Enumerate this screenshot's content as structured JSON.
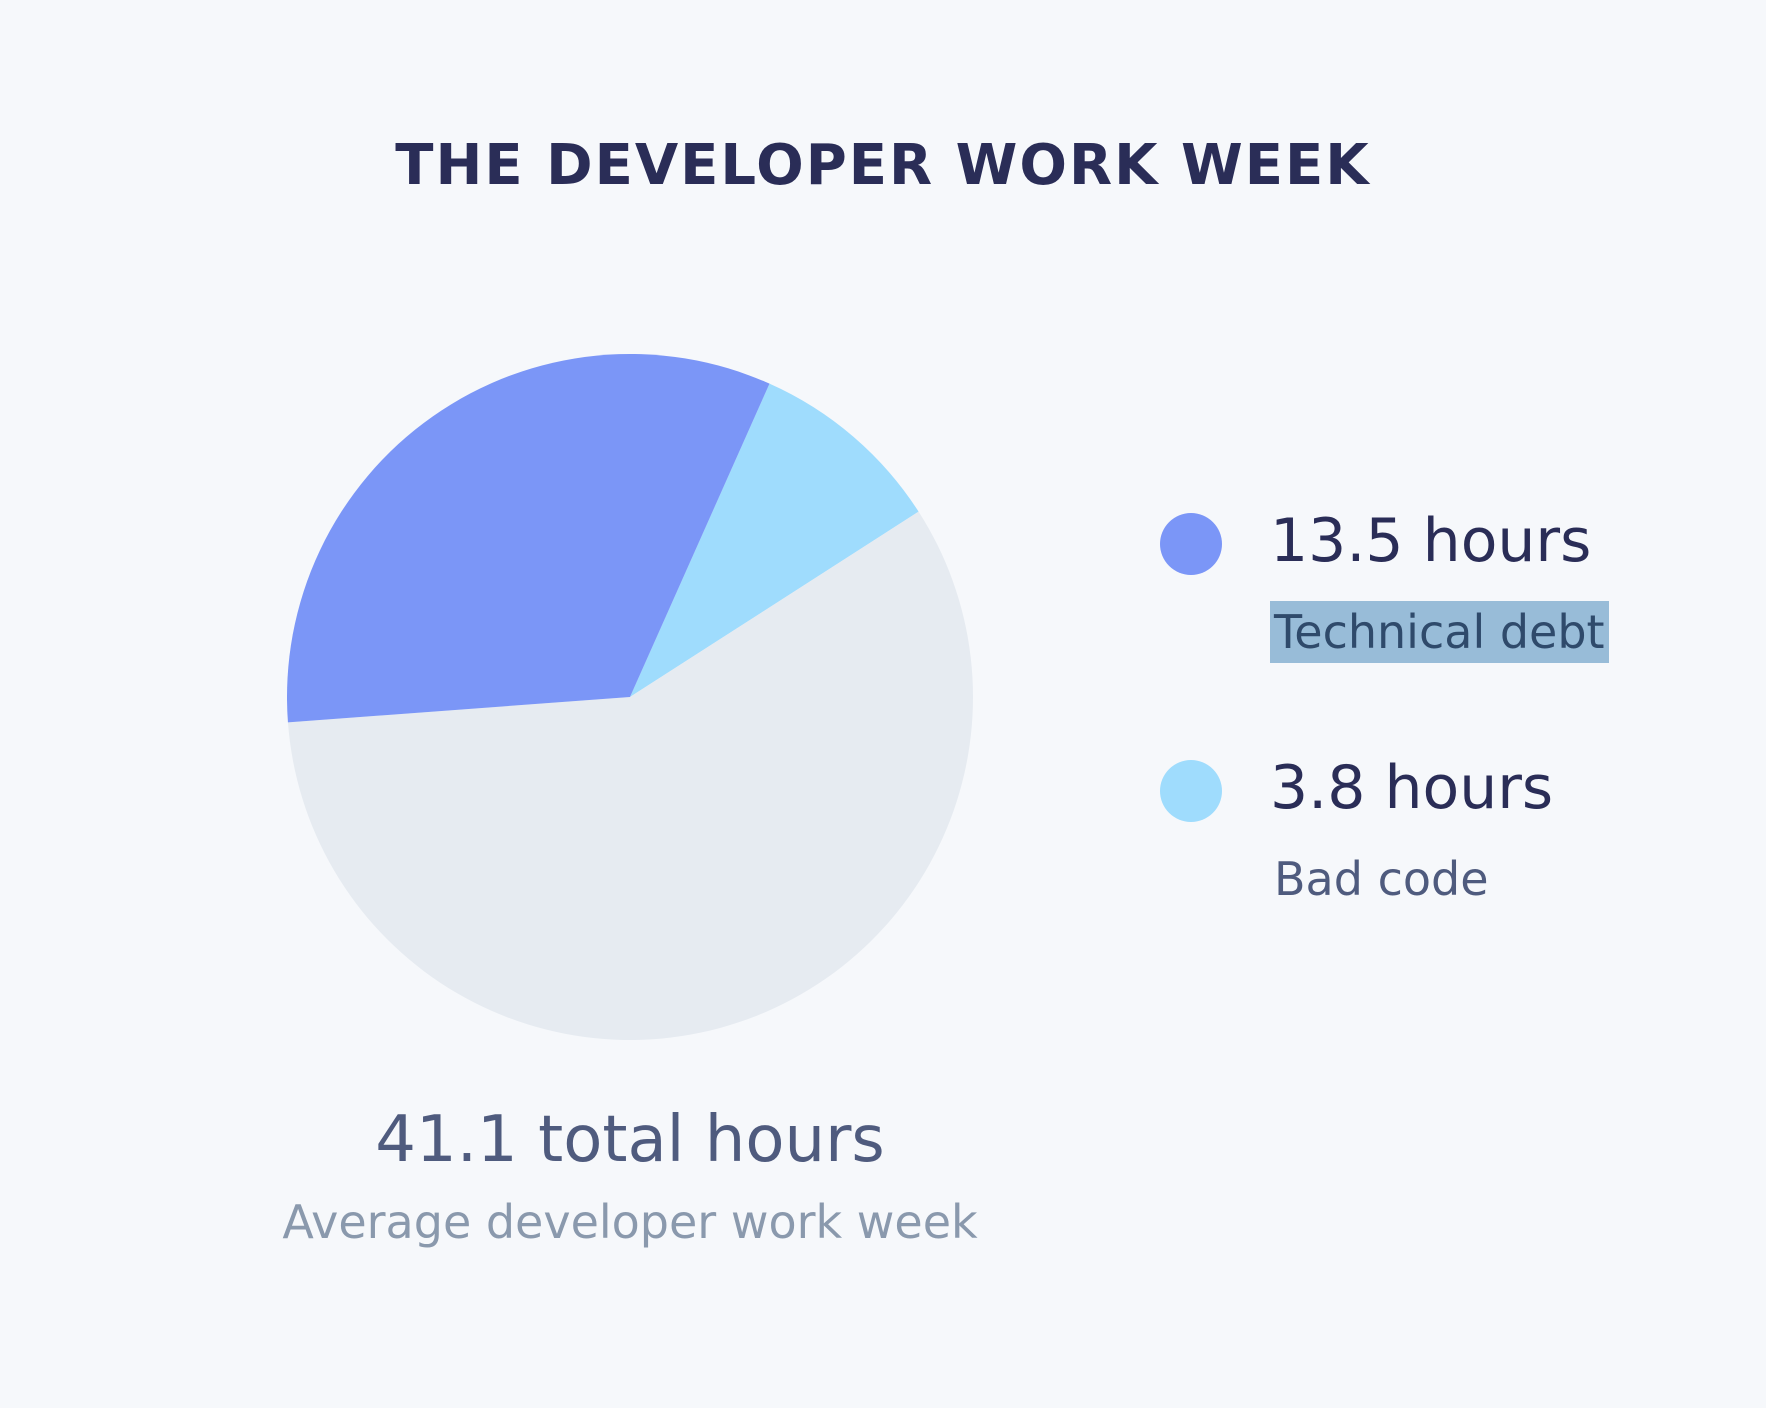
{
  "chart_data": {
    "type": "pie",
    "title": "THE DEVELOPER WORK WEEK",
    "total": 41.1,
    "total_label": "41.1 total hours",
    "total_caption": "Average developer work week",
    "slices": [
      {
        "label": "Technical debt",
        "value": 13.5,
        "value_label": "13.5 hours",
        "color": "#7b96f7"
      },
      {
        "label": "Bad code",
        "value": 3.8,
        "value_label": "3.8 hours",
        "color": "#9fdcfd"
      },
      {
        "label": "",
        "value": 23.8,
        "color": "#e6ebf1"
      }
    ],
    "legend_position": "right"
  },
  "colors": {
    "background": "#f6f8fb",
    "title": "#2a2d57",
    "highlight": "#98bcd8"
  }
}
